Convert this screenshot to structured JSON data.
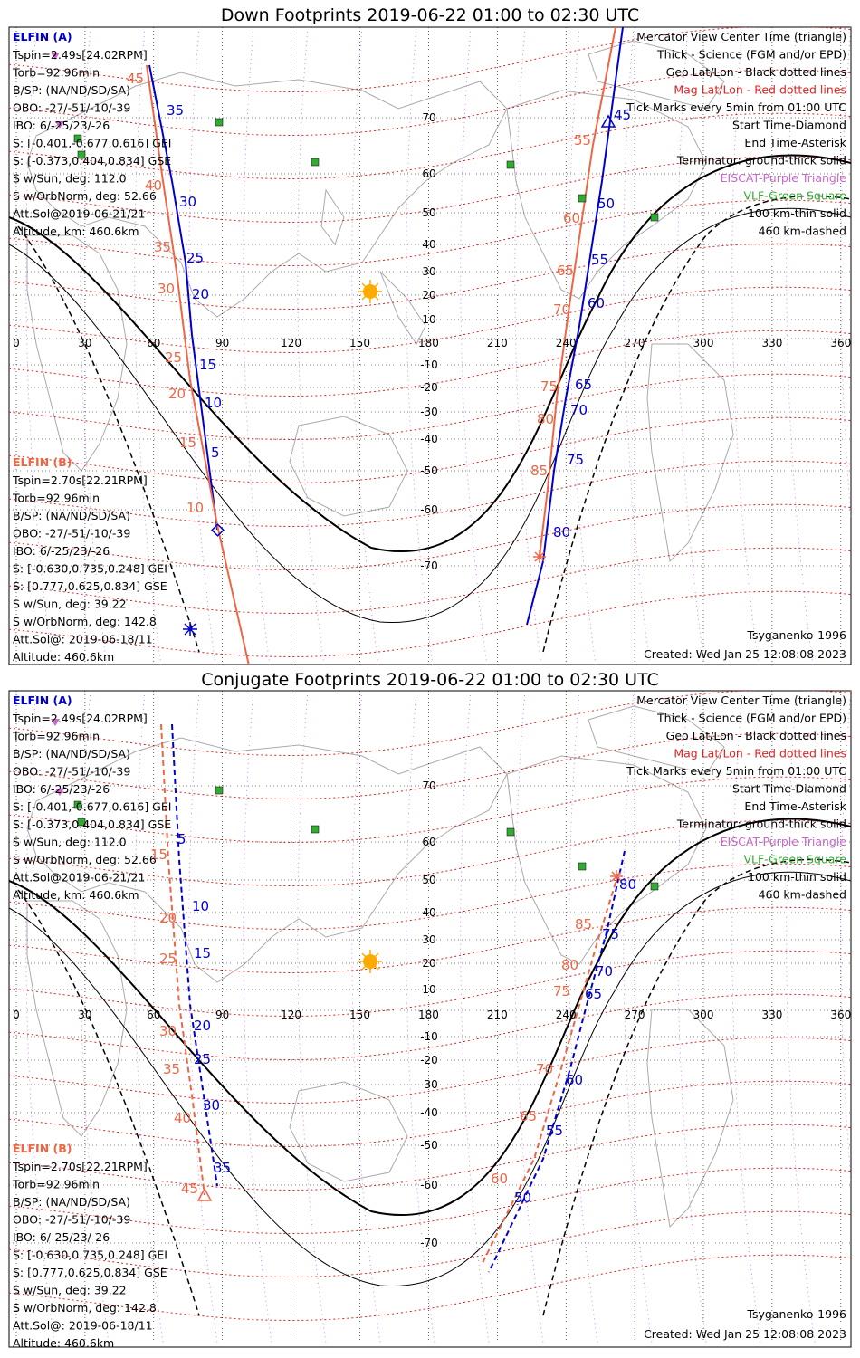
{
  "colors": {
    "elfin_a": "#0000cc",
    "elfin_b": "#ee6644",
    "mag_grid": "#dd2222",
    "geo_grid": "#000000",
    "eiscat": "#cc66cc",
    "vlf": "#33aa33",
    "land": "#999999",
    "sun": "#ffaa00"
  },
  "footer": {
    "model": "Tsyganenko-1996",
    "created": "Created: Wed Jan 25 12:08:08 2023"
  },
  "legend_right": [
    {
      "text": "Mercator View Center Time (triangle)",
      "color": "#000000"
    },
    {
      "text": "Thick - Science (FGM and/or EPD)",
      "color": "#000000"
    },
    {
      "text": "Geo Lat/Lon - Black dotted lines",
      "color": "#000000"
    },
    {
      "text": "Mag Lat/Lon - Red dotted lines",
      "color": "#dd2222"
    },
    {
      "text": "Tick Marks every 5min from 01:00 UTC",
      "color": "#000000"
    },
    {
      "text": "Start Time-Diamond",
      "color": "#000000"
    },
    {
      "text": "End Time-Asterisk",
      "color": "#000000"
    },
    {
      "text": "Terminator: ground-thick solid",
      "color": "#000000"
    },
    {
      "text": "EISCAT-Purple Triangle",
      "color": "#cc66cc"
    },
    {
      "text": "VLF-Green Square",
      "color": "#33aa33"
    },
    {
      "text": "100 km-thin solid",
      "color": "#000000"
    },
    {
      "text": "460 km-dashed",
      "color": "#000000"
    }
  ],
  "elfin_a": {
    "title": "ELFIN (A)",
    "lines": [
      "Tspin=2.49s[24.02RPM]",
      "Torb=92.96min",
      "B/SP: (NA/ND/SD/SA)",
      "OBO: -27/-51/-10/-39",
      "IBO: 6/-25/23/-26",
      "S: [-0.401,-0.677,0.616] GEI",
      "S: [-0.373,0.404,0.834] GSE",
      "S w/Sun, deg: 112.0",
      "S w/OrbNorm, deg: 52.66",
      "Att.Sol@2019-06-21/21",
      "Altitude, km: 460.6km"
    ]
  },
  "elfin_b": {
    "title": "ELFIN (B)",
    "lines": [
      "Tspin=2.70s[22.21RPM]",
      "Torb=92.96min",
      "B/SP: (NA/ND/SD/SA)",
      "OBO: -27/-51/-10/-39",
      "IBO: 6/-25/23/-26",
      "S: [-0.630,0.735,0.248] GEI",
      "S: [0.777,0.625,0.834] GSE",
      "S w/Sun, deg: 39.22",
      "S w/OrbNorm, deg: 142.8",
      "Att.Sol@: 2019-06-18/11",
      "Altitude: 460.6km"
    ]
  },
  "panels": [
    {
      "title": "Down Footprints 2019-06-22 01:00 to 02:30 UTC",
      "lon_ticks": [
        "0",
        "30",
        "60",
        "90",
        "120",
        "150",
        "180",
        "210",
        "240",
        "270",
        "300",
        "330",
        "360"
      ],
      "lat_ticks": [
        "70",
        "60",
        "50",
        "40",
        "30",
        "20",
        "10",
        "-10",
        "-20",
        "-30",
        "-40",
        "-50",
        "-60",
        "-70"
      ],
      "track_a_west": [
        "35",
        "30",
        "25",
        "20",
        "15",
        "10",
        "5"
      ],
      "track_b_west": [
        "45",
        "40",
        "35",
        "30",
        "25",
        "20",
        "15",
        "10"
      ],
      "track_a_east": [
        "45",
        "50",
        "55",
        "60",
        "65",
        "70",
        "75",
        "80"
      ],
      "track_b_east": [
        "55",
        "60",
        "65",
        "70",
        "75",
        "80",
        "85"
      ]
    },
    {
      "title": "Conjugate Footprints 2019-06-22 01:00 to 02:30 UTC",
      "lon_ticks": [
        "0",
        "30",
        "60",
        "90",
        "120",
        "150",
        "180",
        "210",
        "240",
        "270",
        "300",
        "330",
        "360"
      ],
      "lat_ticks": [
        "70",
        "60",
        "50",
        "40",
        "30",
        "20",
        "10",
        "-10",
        "-20",
        "-30",
        "-40",
        "-50",
        "-60",
        "-70"
      ],
      "track_a_west": [
        "5",
        "10",
        "15",
        "20",
        "25",
        "30",
        "35"
      ],
      "track_b_west": [
        "15",
        "20",
        "25",
        "30",
        "35",
        "40",
        "45"
      ],
      "track_a_east": [
        "80",
        "75",
        "70",
        "65",
        "60",
        "55",
        "50"
      ],
      "track_b_east": [
        "85",
        "80",
        "75",
        "70",
        "65",
        "60"
      ]
    }
  ]
}
